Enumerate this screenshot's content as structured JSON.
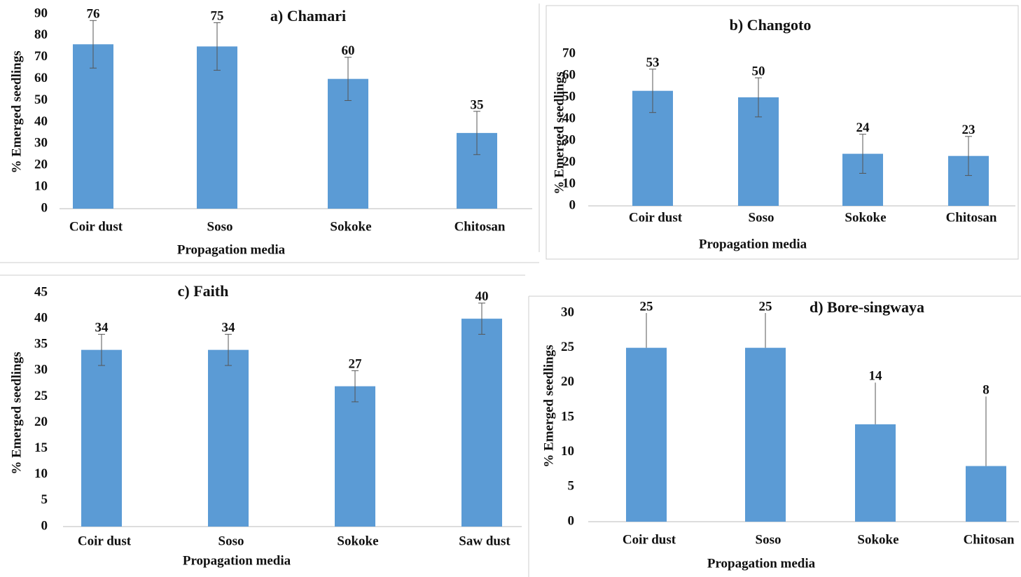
{
  "chart_data": [
    {
      "type": "bar",
      "title": "a) Chamari",
      "x_label": "Propagation media",
      "y_label": "% Emerged seedlings",
      "categories": [
        "Coir dust",
        "Soso",
        "Sokoke",
        "Chitosan"
      ],
      "values": [
        76,
        75,
        60,
        35
      ],
      "errors": [
        11,
        11,
        10,
        10
      ],
      "ylim": [
        0,
        90
      ],
      "yticks": [
        0,
        10,
        20,
        30,
        40,
        50,
        60,
        70,
        80,
        90
      ],
      "color": "#5b9bd5",
      "grid": false
    },
    {
      "type": "bar",
      "title": "b) Changoto",
      "x_label": "Propagation media",
      "y_label": "% Emerged seedlings",
      "categories": [
        "Coir dust",
        "Soso",
        "Sokoke",
        "Chitosan"
      ],
      "values": [
        53,
        50,
        24,
        23
      ],
      "errors": [
        10,
        9,
        9,
        9
      ],
      "ylim": [
        0,
        70
      ],
      "yticks": [
        0,
        10,
        20,
        30,
        40,
        50,
        60,
        70
      ],
      "color": "#5b9bd5",
      "grid": false
    },
    {
      "type": "bar",
      "title": "c) Faith",
      "x_label": "Propagation media",
      "y_label": "% Emerged seedlings",
      "categories": [
        "Coir dust",
        "Soso",
        "Sokoke",
        "Saw dust"
      ],
      "values": [
        34,
        34,
        27,
        40
      ],
      "errors": [
        3,
        3,
        3,
        3
      ],
      "ylim": [
        0,
        45
      ],
      "yticks": [
        0,
        5,
        10,
        15,
        20,
        25,
        30,
        35,
        40,
        45
      ],
      "color": "#5b9bd5",
      "grid": false
    },
    {
      "type": "bar",
      "title": "d) Bore-singwaya",
      "x_label": "Propagation media",
      "y_label": "% Emerged seedlings",
      "categories": [
        "Coir dust",
        "Soso",
        "Sokoke",
        "Chitosan"
      ],
      "values": [
        25,
        25,
        14,
        8
      ],
      "errors": [
        5,
        5,
        6,
        10
      ],
      "error_direction": "up",
      "ylim": [
        0,
        30
      ],
      "yticks": [
        0,
        5,
        10,
        15,
        20,
        25,
        30
      ],
      "color": "#5b9bd5",
      "grid": false
    }
  ]
}
